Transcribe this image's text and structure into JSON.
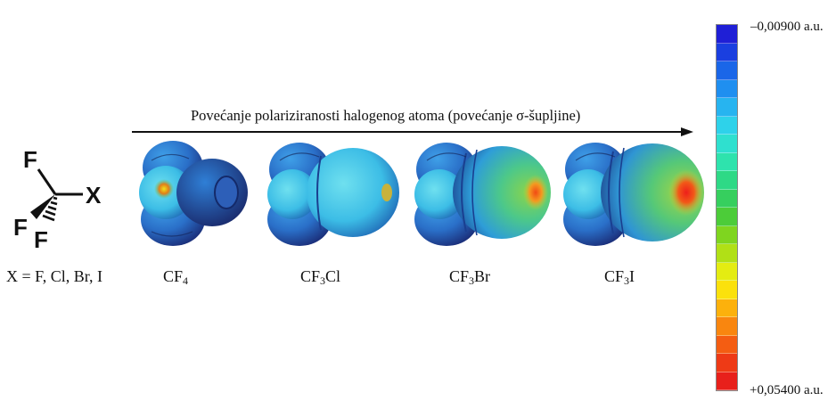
{
  "structure": {
    "atoms": {
      "top_f": "F",
      "x": "X",
      "left_f": "F",
      "bottom_f": "F"
    },
    "definition": "X = F, Cl, Br, I"
  },
  "arrow": {
    "label": "Povećanje polariziranosti halogenog atoma (povećanje σ-šupljine)"
  },
  "molecules": [
    {
      "label_main": "CF",
      "label_sub": "4",
      "label_tail": ""
    },
    {
      "label_main": "CF",
      "label_sub": "3",
      "label_tail": "Cl"
    },
    {
      "label_main": "CF",
      "label_sub": "3",
      "label_tail": "Br"
    },
    {
      "label_main": "CF",
      "label_sub": "3",
      "label_tail": "I"
    }
  ],
  "scale": {
    "top_label": "–0,00900 a.u.",
    "bottom_label": "+0,05400 a.u.",
    "min": -0.009,
    "max": 0.054,
    "colors": [
      "#1f1fd6",
      "#1a3fe0",
      "#1a66e8",
      "#1f8ff0",
      "#27b4f0",
      "#2ed2ea",
      "#2fe0cf",
      "#2ee3ad",
      "#2ed986",
      "#36cf5e",
      "#4ccc39",
      "#7fd51f",
      "#b1e016",
      "#e4ec12",
      "#fbe10c",
      "#fcb10c",
      "#f9860f",
      "#f45d12",
      "#ee3a16",
      "#e8201b"
    ]
  }
}
